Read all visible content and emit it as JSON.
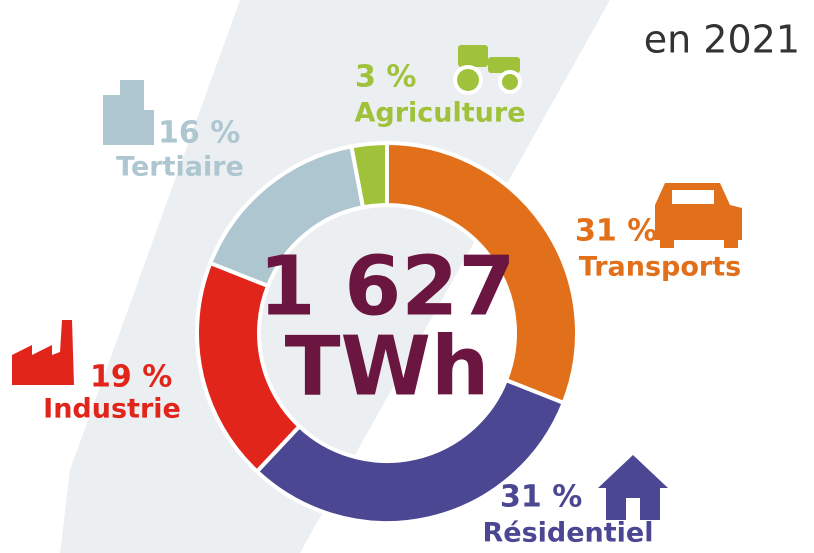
{
  "chart_data": {
    "type": "pie",
    "donut": true,
    "title": "en 2021",
    "center_text": [
      "1 627",
      "TWh"
    ],
    "categories": [
      "Transports",
      "Résidentiel",
      "Industrie",
      "Tertiaire",
      "Agriculture"
    ],
    "values": [
      31,
      31,
      19,
      16,
      3
    ],
    "value_labels": [
      "31 %",
      "31 %",
      "19 %",
      "16 %",
      "3 %"
    ],
    "colors": [
      "#e2701a",
      "#4b4793",
      "#e1251b",
      "#adc6d0",
      "#9fc23a"
    ]
  }
}
